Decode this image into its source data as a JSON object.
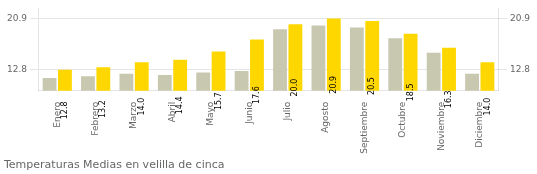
{
  "chart_data": {
    "type": "bar",
    "title": "Temperaturas Medias en velilla de cinca",
    "categories": [
      "Enero",
      "Febrero",
      "Marzo",
      "Abril",
      "Mayo",
      "Junio",
      "Julio",
      "Agosto",
      "Septiembre",
      "Octubre",
      "Noviembre",
      "Diciembre"
    ],
    "series": [
      {
        "color": "#C8C8B0",
        "values": [
          11.5,
          11.8,
          12.2,
          12.0,
          12.4,
          12.6,
          19.2,
          19.8,
          19.5,
          17.8,
          15.5,
          12.2
        ]
      },
      {
        "color": "#FFD700",
        "values": [
          12.8,
          13.2,
          14.0,
          14.4,
          15.7,
          17.6,
          20.0,
          20.9,
          20.5,
          18.5,
          16.3,
          14.0
        ],
        "value_labels": [
          "12.8",
          "13.2",
          "14.0",
          "14.4",
          "15.7",
          "17.6",
          "20.0",
          "20.9",
          "20.5",
          "18.5",
          "16.3",
          "14.0"
        ],
        "data_labels": true
      }
    ],
    "ylim": [
      9.5,
      22.5
    ],
    "yticks": [
      12.8,
      20.9
    ],
    "y2lim": [
      9.5,
      22.5
    ],
    "y2ticks": [
      12.8,
      20.9
    ],
    "grid": true
  }
}
